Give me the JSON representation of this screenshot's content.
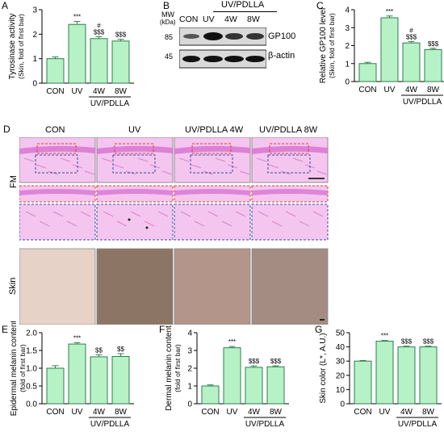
{
  "panels": {
    "A": "A",
    "B": "B",
    "C": "C",
    "D": "D",
    "E": "E",
    "F": "F",
    "G": "G"
  },
  "blot": {
    "header": "UV/PDLLA",
    "lanes": [
      "CON",
      "UV",
      "4W",
      "8W"
    ],
    "mw_label": "MW",
    "mw_unit": "(kDa)",
    "rows": [
      {
        "mw": "85",
        "protein": "GP100"
      },
      {
        "mw": "45",
        "protein": "β-actin"
      }
    ]
  },
  "histology": {
    "columns": [
      "CON",
      "UV",
      "UV/PDLLA 4W",
      "UV/PDLLA 8W"
    ],
    "row_labels": [
      "FM",
      "Skin"
    ]
  },
  "chart_data": [
    {
      "type": "bar",
      "panel": "A",
      "categories": [
        "CON",
        "UV",
        "4W",
        "8W"
      ],
      "group_label": "UV/PDLLA",
      "values": [
        1.0,
        2.4,
        1.82,
        1.72
      ],
      "errors": [
        0.07,
        0.12,
        0.08,
        0.07
      ],
      "significance": [
        [
          "",
          ""
        ],
        [
          "***",
          ""
        ],
        [
          "#",
          "$$$"
        ],
        [
          "$$$",
          ""
        ]
      ],
      "ylabel": "Tyrosinase activity",
      "ylabel2": "(Skin, fold of first bar)",
      "ylim": [
        0,
        3
      ],
      "yticks": [
        "0",
        "1",
        "2",
        "3"
      ]
    },
    {
      "type": "bar",
      "panel": "C",
      "categories": [
        "CON",
        "UV",
        "4W",
        "8W"
      ],
      "group_label": "UV/PDLLA",
      "values": [
        1.0,
        3.55,
        2.15,
        1.78
      ],
      "errors": [
        0.07,
        0.1,
        0.08,
        0.07
      ],
      "significance": [
        [
          "",
          ""
        ],
        [
          "***",
          ""
        ],
        [
          "#",
          "$$$"
        ],
        [
          "$$$",
          ""
        ]
      ],
      "ylabel": "Relative GP100 level",
      "ylabel2": "(Skin, fold of first bar)",
      "ylim": [
        0,
        4
      ],
      "yticks": [
        "0",
        "1",
        "2",
        "3",
        "4"
      ]
    },
    {
      "type": "bar",
      "panel": "E",
      "categories": [
        "CON",
        "UV",
        "4W",
        "8W"
      ],
      "group_label": "UV/PDLLA",
      "values": [
        1.0,
        1.68,
        1.32,
        1.33
      ],
      "errors": [
        0.07,
        0.04,
        0.06,
        0.08
      ],
      "significance": [
        [
          "",
          ""
        ],
        [
          "***",
          ""
        ],
        [
          "$$",
          ""
        ],
        [
          "$$",
          ""
        ]
      ],
      "ylabel": "Epidermal melanin content",
      "ylabel2": "(fold of first bar)",
      "ylim": [
        0,
        2.0
      ],
      "yticks": [
        "0.0",
        "0.5",
        "1.0",
        "1.5",
        "2.0"
      ]
    },
    {
      "type": "bar",
      "panel": "F",
      "categories": [
        "CON",
        "UV",
        "4W",
        "8W"
      ],
      "group_label": "UV/PDLLA",
      "values": [
        1.0,
        3.15,
        2.05,
        2.08
      ],
      "errors": [
        0.06,
        0.07,
        0.08,
        0.05
      ],
      "significance": [
        [
          "",
          ""
        ],
        [
          "***",
          ""
        ],
        [
          "$$$",
          ""
        ],
        [
          "$$$",
          ""
        ]
      ],
      "ylabel": "Dermal melanin content",
      "ylabel2": "(fold of first bar)",
      "ylim": [
        0,
        4
      ],
      "yticks": [
        "0",
        "1",
        "2",
        "3",
        "4"
      ]
    },
    {
      "type": "bar",
      "panel": "G",
      "categories": [
        "CON",
        "UV",
        "4W",
        "8W"
      ],
      "group_label": "UV/PDLLA",
      "values": [
        30,
        44,
        40,
        40
      ],
      "errors": [
        0.4,
        0.5,
        0.5,
        0.5
      ],
      "significance": [
        [
          "",
          ""
        ],
        [
          "***",
          ""
        ],
        [
          "$$$",
          ""
        ],
        [
          "$$$",
          ""
        ]
      ],
      "ylabel": "Skin color (L*, A.U.)",
      "ylabel2": "",
      "ylim": [
        0,
        50
      ],
      "yticks": [
        "0",
        "10",
        "20",
        "30",
        "40",
        "50"
      ]
    }
  ],
  "colors": {
    "bar_fill": "#b6f2c6",
    "bar_stroke": "#2e7d4f",
    "histo_bg": "#f4c6ef",
    "epidermis": "#d76fd0",
    "red_box": "#e53935",
    "blue_box": "#3949ab",
    "skin_con": "#e6d2c6",
    "skin_uv": "#8d7565",
    "skin_4w": "#b3958a",
    "skin_8w": "#a48c82"
  }
}
